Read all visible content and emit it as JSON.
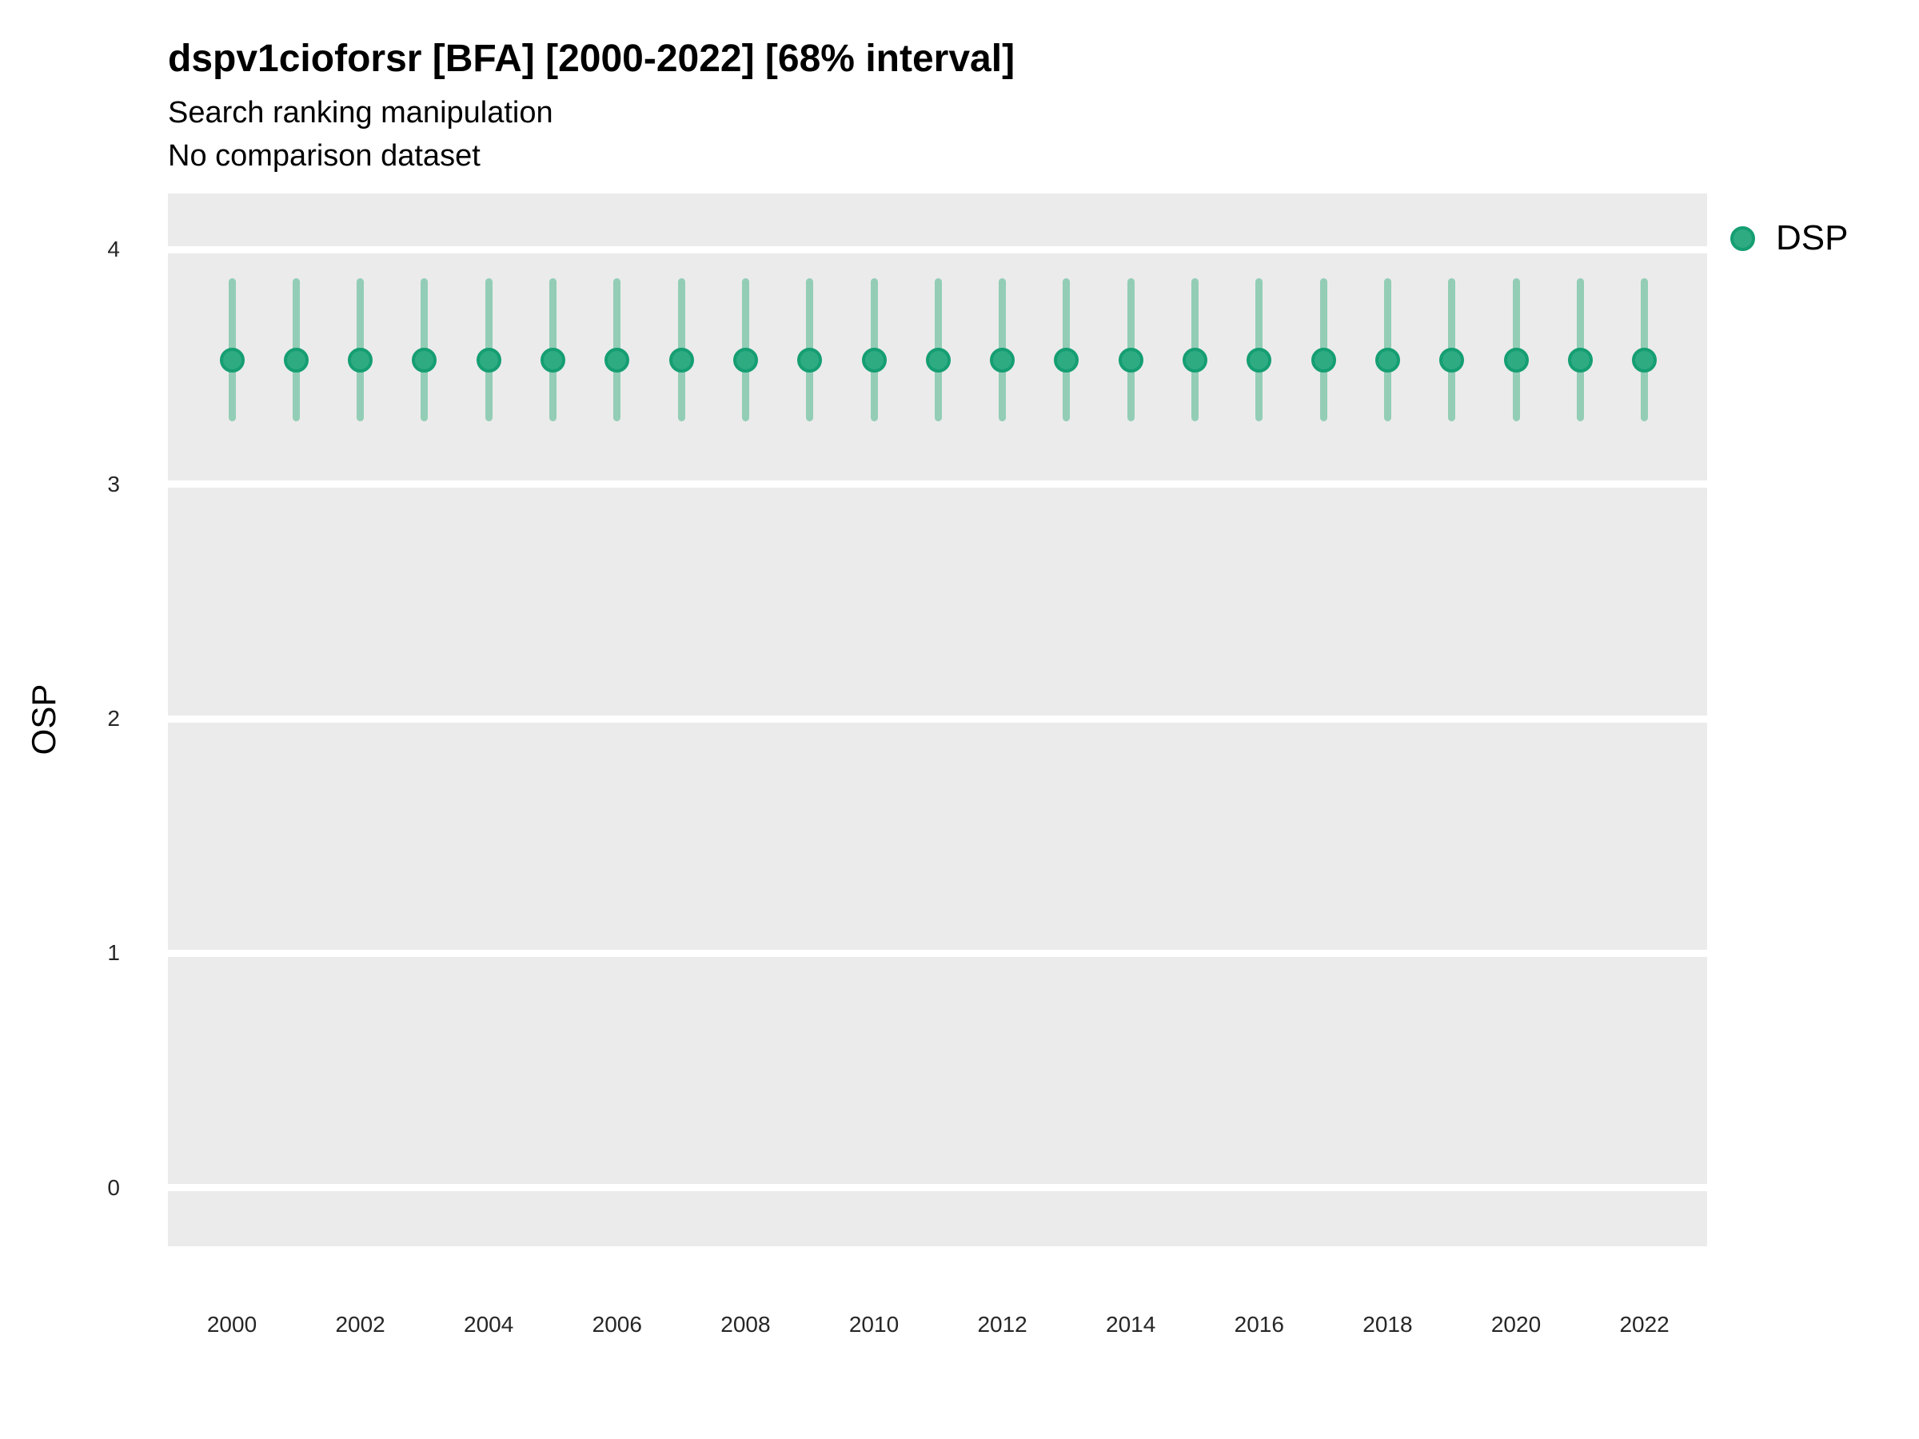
{
  "header": {
    "title": "dspv1cioforsr [BFA] [2000-2022] [68% interval]",
    "subtitle": "Search ranking manipulation",
    "note": "No comparison dataset"
  },
  "axes": {
    "y": {
      "title": "OSP",
      "ticks": [
        4,
        3,
        2,
        1,
        0
      ]
    },
    "x": {
      "ticks": [
        2000,
        2002,
        2004,
        2006,
        2008,
        2010,
        2012,
        2014,
        2016,
        2018,
        2020,
        2022
      ]
    }
  },
  "legend": {
    "items": [
      {
        "label": "DSP",
        "color": "#2FAB82"
      }
    ]
  },
  "style": {
    "panel_background": "#EBEBEB",
    "gridline_color": "#FFFFFF",
    "point_fill": "#2FAB82",
    "point_stroke": "#159E72",
    "interval_color": "#93CDB6"
  },
  "chart_data": {
    "type": "pointrange",
    "title": "dspv1cioforsr [BFA] [2000-2022] [68% interval]",
    "subtitle": "Search ranking manipulation",
    "note": "No comparison dataset",
    "xlabel": "",
    "ylabel": "OSP",
    "interval_level": "68%",
    "xlim": [
      1998.9,
      2023.1
    ],
    "ylim": [
      -0.25,
      4.24
    ],
    "grid": "horizontal-major-only",
    "legend_position": "right",
    "series": [
      {
        "name": "DSP",
        "points": [
          {
            "x": 2000,
            "y": 3.53,
            "lo": 3.27,
            "hi": 3.88
          },
          {
            "x": 2001,
            "y": 3.53,
            "lo": 3.27,
            "hi": 3.88
          },
          {
            "x": 2002,
            "y": 3.53,
            "lo": 3.27,
            "hi": 3.88
          },
          {
            "x": 2003,
            "y": 3.53,
            "lo": 3.27,
            "hi": 3.88
          },
          {
            "x": 2004,
            "y": 3.53,
            "lo": 3.27,
            "hi": 3.88
          },
          {
            "x": 2005,
            "y": 3.53,
            "lo": 3.27,
            "hi": 3.88
          },
          {
            "x": 2006,
            "y": 3.53,
            "lo": 3.27,
            "hi": 3.88
          },
          {
            "x": 2007,
            "y": 3.53,
            "lo": 3.27,
            "hi": 3.88
          },
          {
            "x": 2008,
            "y": 3.53,
            "lo": 3.27,
            "hi": 3.88
          },
          {
            "x": 2009,
            "y": 3.53,
            "lo": 3.27,
            "hi": 3.88
          },
          {
            "x": 2010,
            "y": 3.53,
            "lo": 3.27,
            "hi": 3.88
          },
          {
            "x": 2011,
            "y": 3.53,
            "lo": 3.27,
            "hi": 3.88
          },
          {
            "x": 2012,
            "y": 3.53,
            "lo": 3.27,
            "hi": 3.88
          },
          {
            "x": 2013,
            "y": 3.53,
            "lo": 3.27,
            "hi": 3.88
          },
          {
            "x": 2014,
            "y": 3.53,
            "lo": 3.27,
            "hi": 3.88
          },
          {
            "x": 2015,
            "y": 3.53,
            "lo": 3.27,
            "hi": 3.88
          },
          {
            "x": 2016,
            "y": 3.53,
            "lo": 3.27,
            "hi": 3.88
          },
          {
            "x": 2017,
            "y": 3.53,
            "lo": 3.27,
            "hi": 3.88
          },
          {
            "x": 2018,
            "y": 3.53,
            "lo": 3.27,
            "hi": 3.88
          },
          {
            "x": 2019,
            "y": 3.53,
            "lo": 3.27,
            "hi": 3.88
          },
          {
            "x": 2020,
            "y": 3.53,
            "lo": 3.27,
            "hi": 3.88
          },
          {
            "x": 2021,
            "y": 3.53,
            "lo": 3.27,
            "hi": 3.88
          },
          {
            "x": 2022,
            "y": 3.53,
            "lo": 3.27,
            "hi": 3.88
          }
        ]
      }
    ]
  }
}
